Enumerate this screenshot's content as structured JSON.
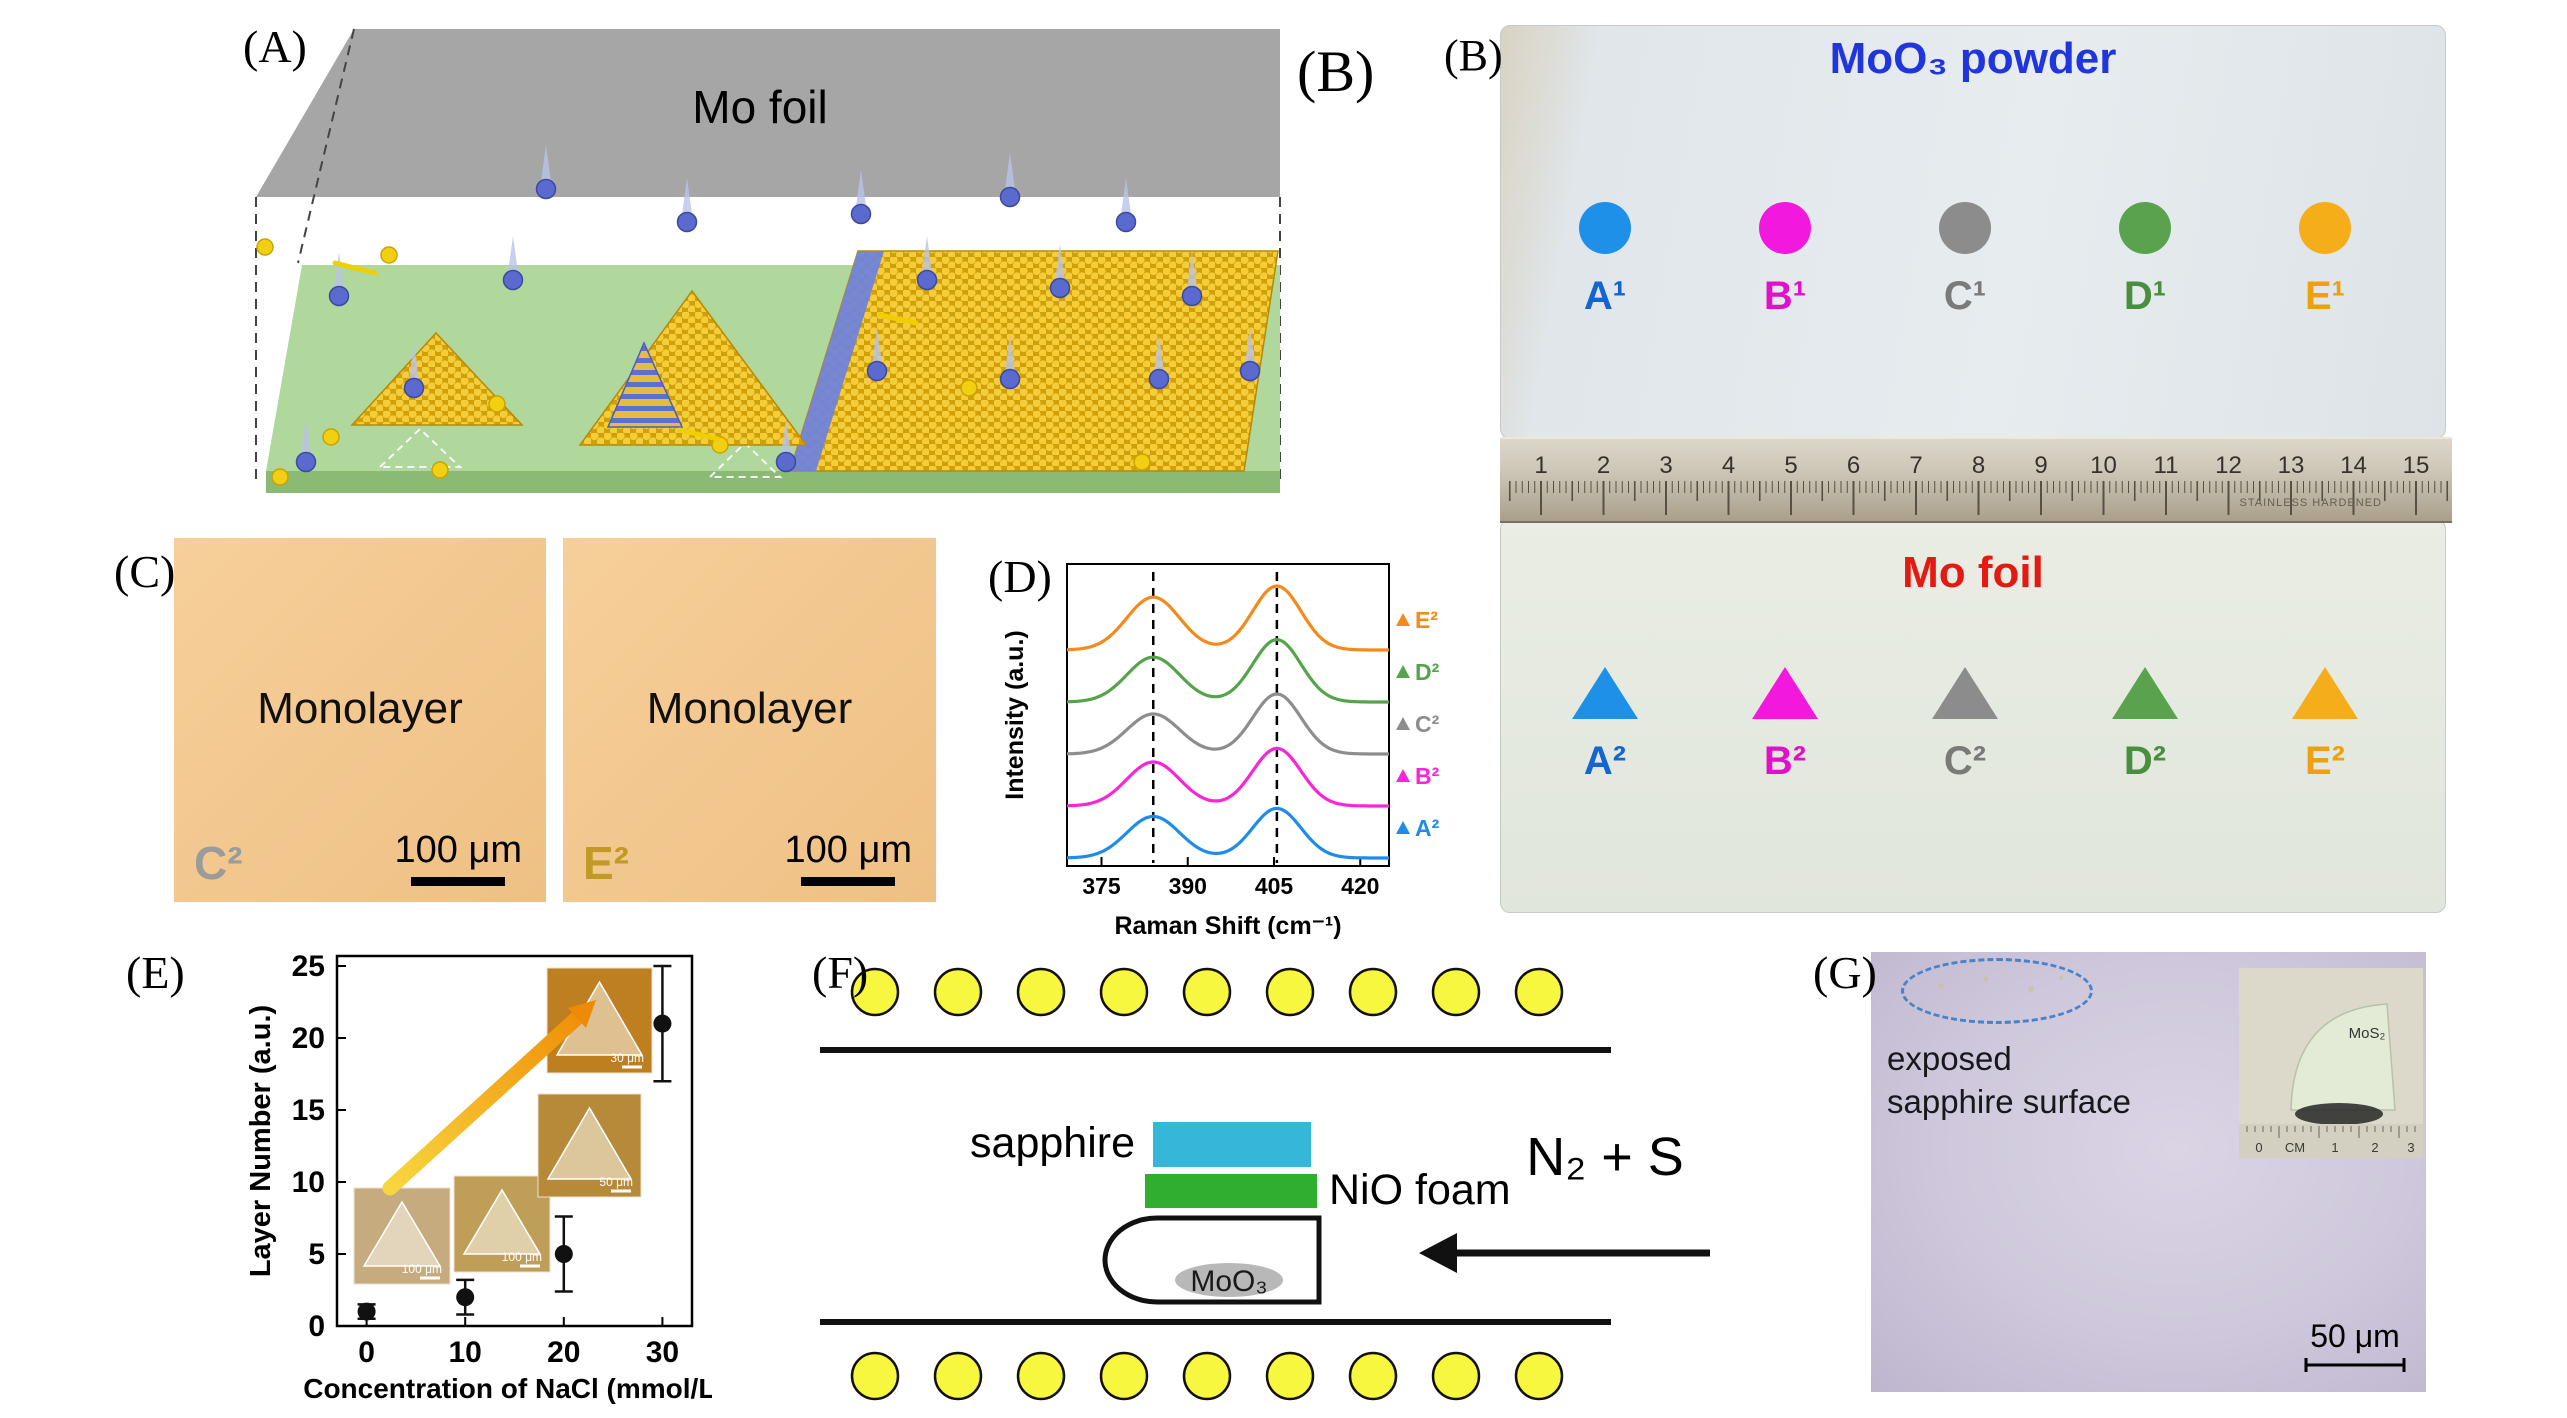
{
  "panels": {
    "a": {
      "label": "(A)",
      "foil_label": "Mo foil"
    },
    "b": {
      "label_outer": "(B)",
      "label_inner": "(B)",
      "top_title": "MoO₃ powder",
      "bottom_title": "Mo foil",
      "top_samples": [
        {
          "label": "A¹",
          "color": "#1e90e8",
          "text_color": "#1565d0"
        },
        {
          "label": "B¹",
          "color": "#f318dd",
          "text_color": "#e012c9"
        },
        {
          "label": "C¹",
          "color": "#8c8c8c",
          "text_color": "#7a7a7a"
        },
        {
          "label": "D¹",
          "color": "#5ba24e",
          "text_color": "#4a8f3f"
        },
        {
          "label": "E¹",
          "color": "#f5ad19",
          "text_color": "#eda10e"
        }
      ],
      "bottom_samples": [
        {
          "label": "A²",
          "color": "#1e90e8",
          "text_color": "#1565d0"
        },
        {
          "label": "B²",
          "color": "#f318dd",
          "text_color": "#e012c9"
        },
        {
          "label": "C²",
          "color": "#8c8c8c",
          "text_color": "#7a7a7a"
        },
        {
          "label": "D²",
          "color": "#5ba24e",
          "text_color": "#4a8f3f"
        },
        {
          "label": "E²",
          "color": "#f5ad19",
          "text_color": "#eda10e"
        }
      ],
      "ruler_numbers": [
        "1",
        "2",
        "3",
        "4",
        "5",
        "6",
        "7",
        "8",
        "9",
        "10",
        "11",
        "12",
        "13",
        "14",
        "15"
      ],
      "ruler_brand": "STAINLESS HARDENED"
    },
    "c": {
      "label": "(C)",
      "images": [
        {
          "title": "Monolayer",
          "tag": "C²",
          "tag_color": "#9b9b9b",
          "scale_label": "100 μm"
        },
        {
          "title": "Monolayer",
          "tag": "E²",
          "tag_color": "#c09a25",
          "scale_label": "100 μm"
        }
      ]
    },
    "d": {
      "label": "(D)"
    },
    "e": {
      "label": "(E)"
    },
    "f": {
      "label": "(F)",
      "sapphire_label": "sapphire",
      "nio_label": "NiO foam",
      "moo3_label": "MoO₃",
      "gas_label": "N₂ + S"
    },
    "g": {
      "label": "(G)",
      "caption_lines": [
        "exposed",
        "sapphire surface"
      ],
      "inset_sample_label": "MoS₂",
      "inset_ruler_labels": [
        "0",
        "CM",
        "1",
        "2",
        "3"
      ],
      "scale_label": "50 μm"
    }
  },
  "chart_data": [
    {
      "id": "raman-spectra",
      "type": "line",
      "xlabel": "Raman Shift (cm⁻¹)",
      "ylabel": "Intensity (a.u.)",
      "x_ticks": [
        375,
        390,
        405,
        420
      ],
      "xlim": [
        369,
        425
      ],
      "dashed_lines_x": [
        384,
        405.5
      ],
      "stacking": "A² bottom to E² top",
      "series": [
        {
          "name": "A²",
          "color": "#1f8ce8",
          "peak1_x": 384,
          "peak1_h": 0.52,
          "peak2_x": 405.5,
          "peak2_h": 0.62
        },
        {
          "name": "B²",
          "color": "#f726d8",
          "peak1_x": 384,
          "peak1_h": 0.55,
          "peak2_x": 405.5,
          "peak2_h": 0.72
        },
        {
          "name": "C²",
          "color": "#8d8d8d",
          "peak1_x": 384,
          "peak1_h": 0.5,
          "peak2_x": 405.5,
          "peak2_h": 0.75
        },
        {
          "name": "D²",
          "color": "#55a44b",
          "peak1_x": 384,
          "peak1_h": 0.56,
          "peak2_x": 405.5,
          "peak2_h": 0.78
        },
        {
          "name": "E²",
          "color": "#f28a1c",
          "peak1_x": 384,
          "peak1_h": 0.66,
          "peak2_x": 405.5,
          "peak2_h": 0.8
        }
      ]
    },
    {
      "id": "layer-number-vs-nacl",
      "type": "scatter",
      "xlabel": "Concentration of NaCl (mmol/L)",
      "ylabel": "Layer Number (a.u.)",
      "x": [
        0,
        10,
        20,
        30
      ],
      "y": [
        1,
        2,
        5,
        21
      ],
      "yerr": [
        0.5,
        1.2,
        2.6,
        4
      ],
      "x_ticks": [
        0,
        10,
        20,
        30
      ],
      "y_ticks": [
        0,
        5,
        10,
        15,
        20,
        25
      ],
      "xlim": [
        -3,
        33
      ],
      "ylim": [
        0,
        25
      ],
      "marker_color": "#111111",
      "insets": [
        {
          "scale_label": "100 μm"
        },
        {
          "scale_label": "100 μm"
        },
        {
          "scale_label": "50 μm"
        },
        {
          "scale_label": "30 μm"
        }
      ]
    }
  ]
}
